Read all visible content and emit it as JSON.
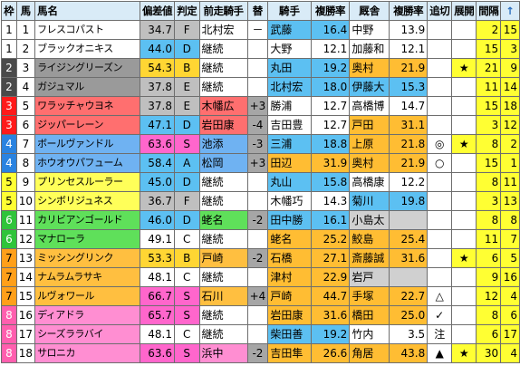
{
  "headers": [
    "枠",
    "馬",
    "馬名",
    "偏差値",
    "判定",
    "前走騎手",
    "替",
    "騎手",
    "複勝率",
    "厩舎",
    "複勝率",
    "追切",
    "展開",
    "間隔",
    "↑"
  ],
  "rows": [
    {
      "waku": "1",
      "num": "1",
      "name": "フレスコパスト",
      "dev": "34.7",
      "grade": "F",
      "prev": "北村宏",
      "chg": "－",
      "jockey": "武藤",
      "jrate": "16.4",
      "stable": "中野",
      "srate": "13.9",
      "oi": "",
      "ten": "",
      "int": "2",
      "pop": "15"
    },
    {
      "waku": "1",
      "num": "2",
      "name": "ブラックオニキス",
      "dev": "44.0",
      "grade": "D",
      "prev": "継続",
      "chg": "",
      "jockey": "大野",
      "jrate": "12.1",
      "stable": "加藤和",
      "srate": "12.1",
      "oi": "",
      "ten": "",
      "int": "15",
      "pop": "3"
    },
    {
      "waku": "2",
      "num": "3",
      "name": "ライジングリーズン",
      "dev": "54.3",
      "grade": "B",
      "prev": "継続",
      "chg": "",
      "jockey": "丸田",
      "jrate": "19.2",
      "stable": "奥村",
      "srate": "21.9",
      "oi": "",
      "ten": "★",
      "int": "21",
      "pop": "9"
    },
    {
      "waku": "2",
      "num": "4",
      "name": "ガジュマル",
      "dev": "37.8",
      "grade": "E",
      "prev": "継続",
      "chg": "",
      "jockey": "北村宏",
      "jrate": "18.0",
      "stable": "伊藤大",
      "srate": "15.3",
      "oi": "",
      "ten": "",
      "int": "11",
      "pop": "14"
    },
    {
      "waku": "3",
      "num": "5",
      "name": "ワラッチャウヨネ",
      "dev": "37.8",
      "grade": "E",
      "prev": "木幡広",
      "chg": "+3",
      "jockey": "勝浦",
      "jrate": "12.7",
      "stable": "高橋博",
      "srate": "14.7",
      "oi": "",
      "ten": "",
      "int": "15",
      "pop": "18"
    },
    {
      "waku": "3",
      "num": "6",
      "name": "ジッパーレーン",
      "dev": "47.1",
      "grade": "D",
      "prev": "岩田康",
      "chg": "-4",
      "jockey": "吉田豊",
      "jrate": "12.7",
      "stable": "戸田",
      "srate": "31.1",
      "oi": "",
      "ten": "",
      "int": "3",
      "pop": "12"
    },
    {
      "waku": "4",
      "num": "7",
      "name": "ボールヴァンドル",
      "dev": "63.6",
      "grade": "S",
      "prev": "池添",
      "chg": "-3",
      "jockey": "三浦",
      "jrate": "18.8",
      "stable": "上原",
      "srate": "21.8",
      "oi": "◎",
      "ten": "★",
      "int": "8",
      "pop": "2"
    },
    {
      "waku": "4",
      "num": "8",
      "name": "ホウオウパフューム",
      "dev": "58.4",
      "grade": "A",
      "prev": "松岡",
      "chg": "+3",
      "jockey": "田辺",
      "jrate": "31.9",
      "stable": "奥村",
      "srate": "21.9",
      "oi": "○",
      "ten": "",
      "int": "15",
      "pop": "1"
    },
    {
      "waku": "5",
      "num": "9",
      "name": "プリンセスルーラー",
      "dev": "45.0",
      "grade": "D",
      "prev": "継続",
      "chg": "",
      "jockey": "丸山",
      "jrate": "15.8",
      "stable": "高橋康",
      "srate": "12.2",
      "oi": "",
      "ten": "",
      "int": "8",
      "pop": "11"
    },
    {
      "waku": "5",
      "num": "10",
      "name": "シンボリジュネス",
      "dev": "36.7",
      "grade": "F",
      "prev": "継続",
      "chg": "",
      "jockey": "木幡巧",
      "jrate": "14.3",
      "stable": "菊川",
      "srate": "19.8",
      "oi": "",
      "ten": "",
      "int": "3",
      "pop": "13"
    },
    {
      "waku": "6",
      "num": "11",
      "name": "カリビアンゴールド",
      "dev": "46.0",
      "grade": "D",
      "prev": "蛯名",
      "chg": "-2",
      "jockey": "田中勝",
      "jrate": "16.1",
      "stable": "小島太",
      "srate": "",
      "oi": "",
      "ten": "",
      "int": "8",
      "pop": "8"
    },
    {
      "waku": "6",
      "num": "12",
      "name": "マナローラ",
      "dev": "49.1",
      "grade": "C",
      "prev": "継続",
      "chg": "",
      "jockey": "蛯名",
      "jrate": "25.2",
      "stable": "鮫島",
      "srate": "25.4",
      "oi": "",
      "ten": "",
      "int": "11",
      "pop": "7"
    },
    {
      "waku": "7",
      "num": "13",
      "name": "ミッシングリンク",
      "dev": "53.3",
      "grade": "B",
      "prev": "戸崎",
      "chg": "-2",
      "jockey": "石橋",
      "jrate": "27.1",
      "stable": "斎藤誠",
      "srate": "31.6",
      "oi": "",
      "ten": "★",
      "int": "6",
      "pop": "5"
    },
    {
      "waku": "7",
      "num": "14",
      "name": "ナムラムラサキ",
      "dev": "48.1",
      "grade": "C",
      "prev": "継続",
      "chg": "",
      "jockey": "津村",
      "jrate": "22.9",
      "stable": "岩戸",
      "srate": "",
      "oi": "",
      "ten": "",
      "int": "9",
      "pop": "16"
    },
    {
      "waku": "7",
      "num": "15",
      "name": "ルヴォワール",
      "dev": "66.7",
      "grade": "S",
      "prev": "石川",
      "chg": "+4",
      "jockey": "戸崎",
      "jrate": "44.7",
      "stable": "手塚",
      "srate": "22.7",
      "oi": "△",
      "ten": "",
      "int": "12",
      "pop": "4"
    },
    {
      "waku": "8",
      "num": "16",
      "name": "ディアドラ",
      "dev": "65.7",
      "grade": "S",
      "prev": "継続",
      "chg": "",
      "jockey": "岩田康",
      "jrate": "31.6",
      "stable": "橋田",
      "srate": "25.0",
      "oi": "✓",
      "ten": "",
      "int": "8",
      "pop": "6"
    },
    {
      "waku": "8",
      "num": "17",
      "name": "シーズララバイ",
      "dev": "48.1",
      "grade": "C",
      "prev": "継続",
      "chg": "",
      "jockey": "柴田善",
      "jrate": "19.2",
      "stable": "竹内",
      "srate": "3.5",
      "oi": "注",
      "ten": "",
      "int": "6",
      "pop": "17"
    },
    {
      "waku": "8",
      "num": "18",
      "name": "サロニカ",
      "dev": "63.6",
      "grade": "S",
      "prev": "浜中",
      "chg": "-2",
      "jockey": "吉田隼",
      "jrate": "26.6",
      "stable": "角居",
      "srate": "43.8",
      "oi": "▲",
      "ten": "★",
      "int": "30",
      "pop": "4"
    }
  ],
  "colors": {
    "waku": {
      "1": {
        "bg": "#ffffff",
        "fg": "#000000"
      },
      "2": {
        "bg": "#4a4a4a",
        "fg": "#ffffff"
      },
      "3": {
        "bg": "#ff1a1a",
        "fg": "#ffffff"
      },
      "4": {
        "bg": "#2a83e0",
        "fg": "#ffffff"
      },
      "5": {
        "bg": "#ffff33",
        "fg": "#000000"
      },
      "6": {
        "bg": "#2fc43a",
        "fg": "#ffffff"
      },
      "7": {
        "bg": "#ff9f1a",
        "fg": "#000000"
      },
      "8": {
        "bg": "#ff5fae",
        "fg": "#ffffff"
      }
    },
    "name": {
      "1": "#ffffff",
      "2": "#9a9a9a",
      "3": "#ff6f6f",
      "4": "#6fb2f2",
      "5": "#ffff59",
      "6": "#5fe05a",
      "7": "#ffbf40",
      "8": "#ff8ed2"
    },
    "dev": {
      "S": "#ff66cc",
      "A": "#5cc0f2",
      "B": "#ffd633",
      "C": "#ffffff",
      "D": "#5cc0f2",
      "E": "#bfbfbf",
      "F": "#bfbfbf"
    },
    "rate_hi": "#ffbd33",
    "rate_mid": "#5cc0f2",
    "rate_low": "#ffffff",
    "rate_none": "#d0d0d0",
    "chg_bg": "#a6a6a6",
    "int_bg": "#ffff33",
    "pop_bg": "#ffff33",
    "tenkai_bg": "#ffff33"
  }
}
